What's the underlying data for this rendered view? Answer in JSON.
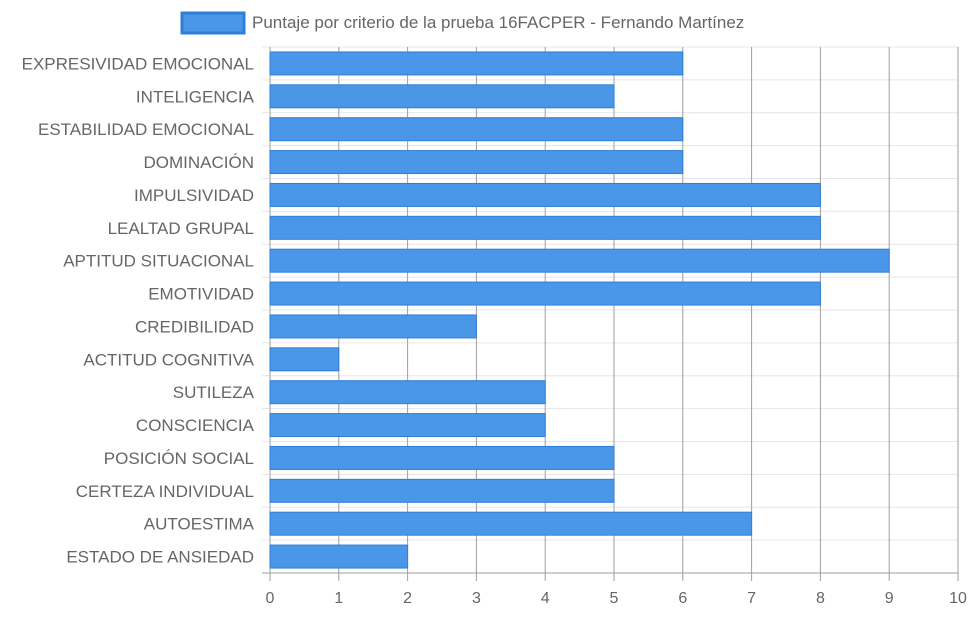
{
  "chart_data": {
    "type": "bar",
    "orientation": "horizontal",
    "categories": [
      "EXPRESIVIDAD EMOCIONAL",
      "INTELIGENCIA",
      "ESTABILIDAD EMOCIONAL",
      "DOMINACIÓN",
      "IMPULSIVIDAD",
      "LEALTAD GRUPAL",
      "APTITUD SITUACIONAL",
      "EMOTIVIDAD",
      "CREDIBILIDAD",
      "ACTITUD COGNITIVA",
      "SUTILEZA",
      "CONSCIENCIA",
      "POSICIÓN SOCIAL",
      "CERTEZA INDIVIDUAL",
      "AUTOESTIMA",
      "ESTADO DE ANSIEDAD"
    ],
    "series": [
      {
        "name": "Puntaje por criterio de la prueba 16FACPER - Fernando Martínez",
        "color": "#4a97e8",
        "values": [
          6,
          5,
          6,
          6,
          8,
          8,
          9,
          8,
          3,
          1,
          4,
          4,
          5,
          5,
          7,
          2
        ]
      }
    ],
    "xlim": [
      0,
      10
    ],
    "xticks": [
      "0",
      "1",
      "2",
      "3",
      "4",
      "5",
      "6",
      "7",
      "8",
      "9",
      "10"
    ],
    "grid": true,
    "legend_position": "top-center",
    "colors": {
      "bar_fill": "#4a97e8",
      "bar_border": "#2f7fd8",
      "grid_x": "#9e9e9e",
      "grid_y": "#e6e6e6",
      "text": "#666666"
    }
  }
}
